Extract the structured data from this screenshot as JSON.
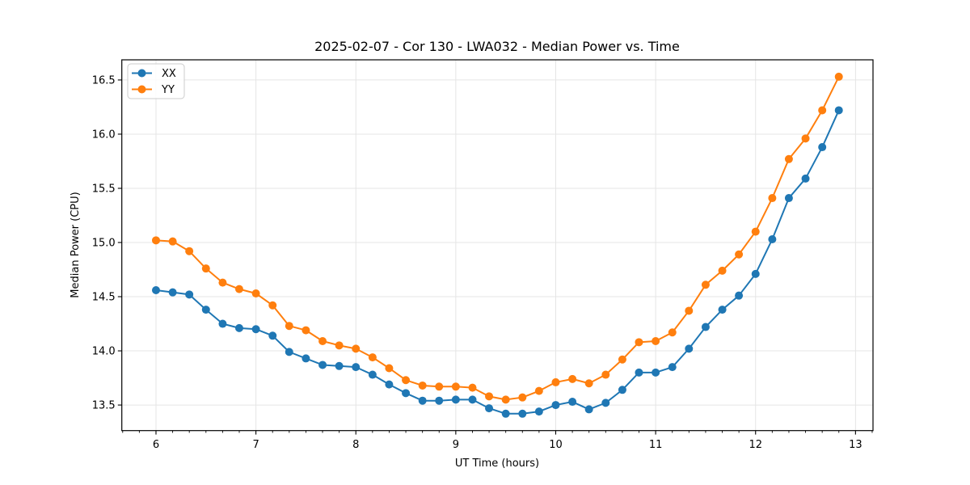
{
  "chart_data": {
    "type": "line",
    "title": "2025-02-07 - Cor 130 - LWA032 - Median Power vs. Time",
    "xlabel": "UT Time (hours)",
    "ylabel": "Median Power (CPU)",
    "xlim": [
      5.658,
      13.175
    ],
    "ylim": [
      13.264,
      16.686
    ],
    "grid": true,
    "legend_position": "upper left",
    "x_tick_values": [
      6,
      7,
      8,
      9,
      10,
      11,
      12,
      13
    ],
    "x_tick_labels": [
      "6",
      "7",
      "8",
      "9",
      "10",
      "11",
      "12",
      "13"
    ],
    "x_minor_tick_step": 0.1666667,
    "y_tick_values": [
      13.5,
      14.0,
      14.5,
      15.0,
      15.5,
      16.0,
      16.5
    ],
    "y_tick_labels": [
      "13.5",
      "14.0",
      "14.5",
      "15.0",
      "15.5",
      "16.0",
      "16.5"
    ],
    "x": [
      6.0,
      6.167,
      6.333,
      6.5,
      6.667,
      6.833,
      7.0,
      7.167,
      7.333,
      7.5,
      7.667,
      7.833,
      8.0,
      8.167,
      8.333,
      8.5,
      8.667,
      8.833,
      9.0,
      9.167,
      9.333,
      9.5,
      9.667,
      9.833,
      10.0,
      10.167,
      10.333,
      10.5,
      10.667,
      10.833,
      11.0,
      11.167,
      11.333,
      11.5,
      11.667,
      11.833,
      12.0,
      12.167,
      12.333,
      12.5,
      12.667,
      12.833
    ],
    "series": [
      {
        "name": "XX",
        "color": "#1f77b4",
        "values": [
          14.56,
          14.54,
          14.52,
          14.38,
          14.25,
          14.21,
          14.2,
          14.14,
          13.99,
          13.93,
          13.87,
          13.86,
          13.85,
          13.78,
          13.69,
          13.61,
          13.54,
          13.54,
          13.55,
          13.55,
          13.47,
          13.42,
          13.42,
          13.44,
          13.5,
          13.53,
          13.46,
          13.52,
          13.64,
          13.8,
          13.8,
          13.85,
          14.02,
          14.22,
          14.38,
          14.51,
          14.71,
          15.03,
          15.41,
          15.59,
          15.88,
          16.22
        ]
      },
      {
        "name": "YY",
        "color": "#ff7f0e",
        "values": [
          15.02,
          15.01,
          14.92,
          14.76,
          14.63,
          14.57,
          14.53,
          14.42,
          14.23,
          14.19,
          14.09,
          14.05,
          14.02,
          13.94,
          13.84,
          13.73,
          13.68,
          13.67,
          13.67,
          13.66,
          13.58,
          13.55,
          13.57,
          13.63,
          13.71,
          13.74,
          13.7,
          13.78,
          13.92,
          14.08,
          14.09,
          14.17,
          14.37,
          14.61,
          14.74,
          14.89,
          15.1,
          15.41,
          15.77,
          15.96,
          16.22,
          16.53
        ]
      }
    ],
    "style": {
      "grid_color": "#e5e5e5",
      "spine_color": "#000000",
      "background": "#ffffff",
      "marker": "o",
      "marker_radius": 5,
      "line_width": 2
    }
  }
}
